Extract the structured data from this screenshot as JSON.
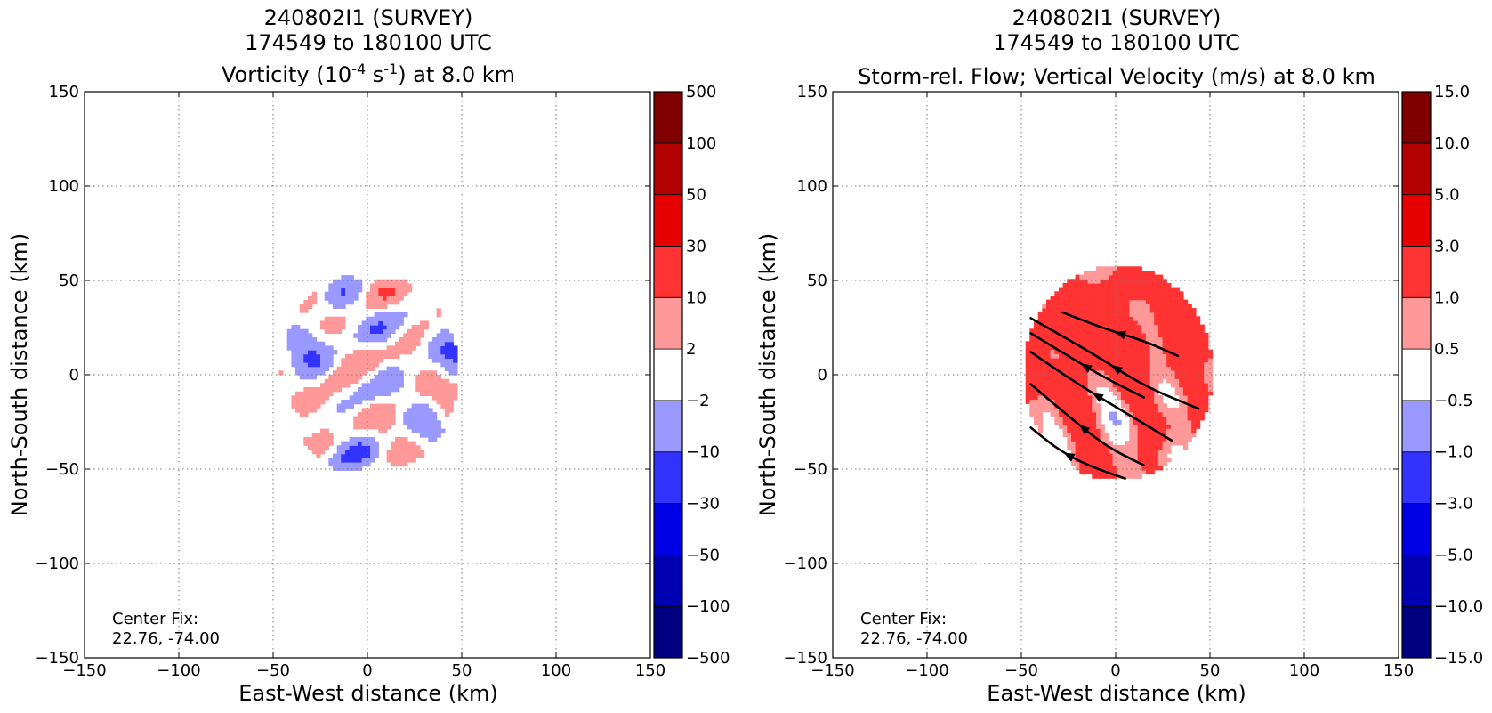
{
  "chart_data": [
    {
      "type": "heatmap",
      "title_lines": [
        "240802I1 (SURVEY)",
        "174549 to 180100 UTC"
      ],
      "title_line3_prefix": "Vorticity (10",
      "title_line3_sup1": "-4",
      "title_line3_mid": " s",
      "title_line3_sup2": "-1",
      "title_line3_suffix": ") at 8.0 km",
      "xlabel": "East-West distance (km)",
      "ylabel": "North-South distance (km)",
      "xlim": [
        -150,
        150
      ],
      "ylim": [
        -150,
        150
      ],
      "xticks": [
        -150,
        -100,
        -50,
        0,
        50,
        100,
        150
      ],
      "yticks": [
        -150,
        -100,
        -50,
        0,
        50,
        100,
        150
      ],
      "grid": true,
      "annotation": [
        "Center Fix:",
        "22.76, -74.00"
      ],
      "data_extent_km": {
        "x": [
          -47,
          47
        ],
        "y": [
          -55,
          55
        ]
      },
      "colorbar": {
        "levels": [
          -500,
          -100,
          -50,
          -30,
          -10,
          -2,
          2,
          10,
          30,
          50,
          100,
          500
        ],
        "labels": [
          "−500",
          "−100",
          "−50",
          "−30",
          "−10",
          "−2",
          "2",
          "10",
          "30",
          "50",
          "100",
          "500"
        ],
        "colors": [
          "#000080",
          "#0000b3",
          "#0000e6",
          "#3333ff",
          "#9999ff",
          "#ffffff",
          "#ff9999",
          "#ff3333",
          "#e60000",
          "#b30000",
          "#800000"
        ]
      }
    },
    {
      "type": "heatmap",
      "title_lines": [
        "240802I1 (SURVEY)",
        "174549 to 180100 UTC",
        "Storm-rel. Flow; Vertical Velocity (m/s) at 8.0 km"
      ],
      "xlabel": "East-West distance (km)",
      "ylabel": "North-South distance (km)",
      "xlim": [
        -150,
        150
      ],
      "ylim": [
        -150,
        150
      ],
      "xticks": [
        -150,
        -100,
        -50,
        0,
        50,
        100,
        150
      ],
      "yticks": [
        -150,
        -100,
        -50,
        0,
        50,
        100,
        150
      ],
      "grid": true,
      "annotation": [
        "Center Fix:",
        "22.76, -74.00"
      ],
      "data_extent_km": {
        "x": [
          -50,
          50
        ],
        "y": [
          -57,
          57
        ]
      },
      "streamlines_km": [
        [
          [
            33,
            10
          ],
          [
            15,
            18
          ],
          [
            -5,
            24
          ],
          [
            -28,
            33
          ]
        ],
        [
          [
            44,
            -18
          ],
          [
            15,
            -6
          ],
          [
            -10,
            10
          ],
          [
            -45,
            30
          ]
        ],
        [
          [
            15,
            -12
          ],
          [
            -5,
            -2
          ],
          [
            -22,
            8
          ],
          [
            -45,
            22
          ]
        ],
        [
          [
            30,
            -35
          ],
          [
            5,
            -20
          ],
          [
            -20,
            -5
          ],
          [
            -45,
            12
          ]
        ],
        [
          [
            15,
            -48
          ],
          [
            -5,
            -38
          ],
          [
            -25,
            -22
          ],
          [
            -45,
            -5
          ]
        ],
        [
          [
            5,
            -55
          ],
          [
            -15,
            -48
          ],
          [
            -30,
            -40
          ],
          [
            -45,
            -28
          ]
        ]
      ],
      "colorbar": {
        "levels": [
          -15,
          -10,
          -5,
          -3,
          -1,
          -0.5,
          0.5,
          1,
          3,
          5,
          10,
          15
        ],
        "labels": [
          "−15.0",
          "−10.0",
          "−5.0",
          "−3.0",
          "−1.0",
          "−0.5",
          "0.5",
          "1.0",
          "3.0",
          "5.0",
          "10.0",
          "15.0"
        ],
        "colors": [
          "#000080",
          "#0000b3",
          "#0000e6",
          "#3333ff",
          "#9999ff",
          "#ffffff",
          "#ff9999",
          "#ff3333",
          "#e60000",
          "#b30000",
          "#800000"
        ]
      }
    }
  ]
}
